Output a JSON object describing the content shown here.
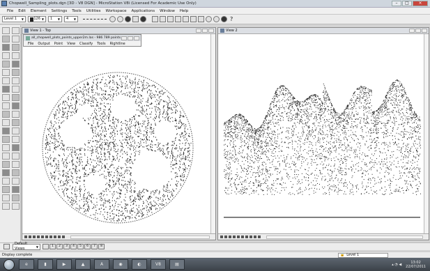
{
  "window": {
    "title": "Chopwell_Sampling_plots.dgn [3D - V8 DGN] - MicroStation V8i (Licensed For Academic Use Only)"
  },
  "menu": [
    "File",
    "Edit",
    "Element",
    "Settings",
    "Tools",
    "Utilities",
    "Workspace",
    "Applications",
    "Window",
    "Help"
  ],
  "toolbar": {
    "level": "Level 1",
    "color": "126",
    "weight": "1",
    "style": "4"
  },
  "view1": {
    "title": "View 1 - Top"
  },
  "view2": {
    "title": "View 2"
  },
  "pointcloud_window": {
    "title": "all_chopwell_plots_points_upper2m.las - 986 789 points",
    "menu": [
      "File",
      "Output",
      "Point",
      "View",
      "Classify",
      "Tools",
      "Rightline"
    ]
  },
  "viewgroups": {
    "label": "Default Views",
    "views": [
      "1",
      "2",
      "3",
      "4",
      "5",
      "6",
      "7",
      "8"
    ]
  },
  "status": {
    "message": "Display complete",
    "level": "Level 1"
  },
  "taskbar": {
    "apps": [
      "e",
      "▮",
      "▶",
      "▲",
      "A",
      "◉",
      "◐",
      "V8",
      "▤"
    ],
    "time": "13:02",
    "date": "22/07/2011"
  },
  "colors": {
    "background": "#d4d4d4",
    "taskbar": "#3b4148",
    "close": "#c9463d"
  }
}
